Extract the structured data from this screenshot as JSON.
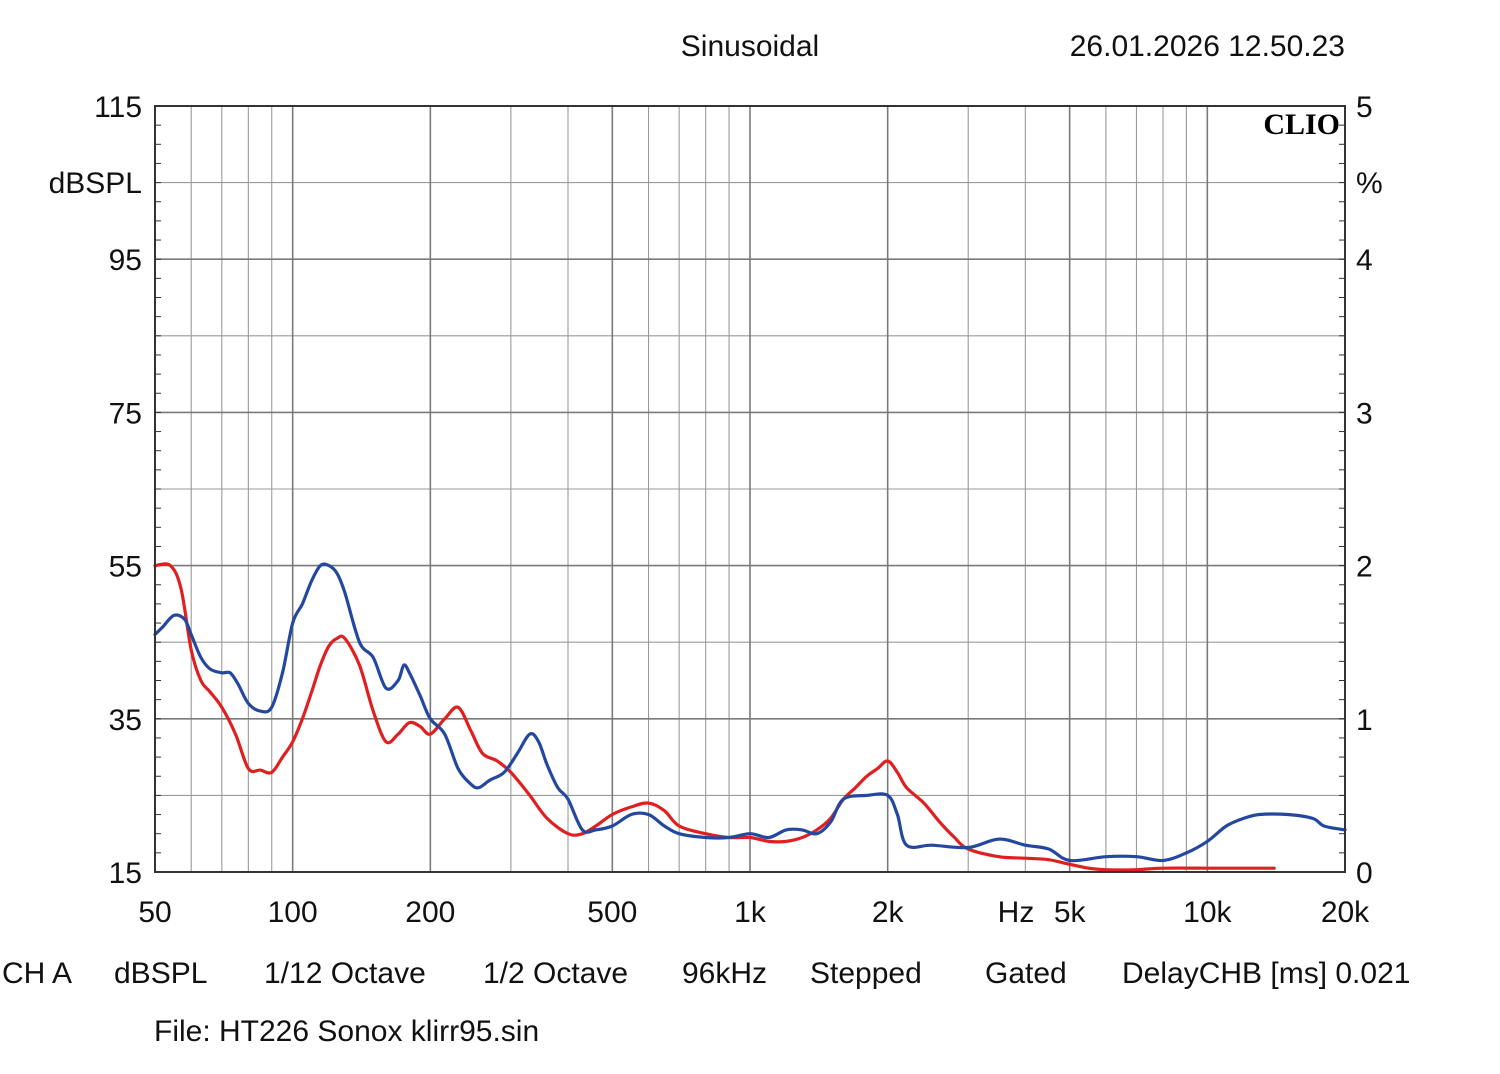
{
  "header": {
    "mode": "Sinusoidal",
    "timestamp": "26.01.2026 12.50.23",
    "brand": "CLIO"
  },
  "chart_data": {
    "type": "line",
    "x_scale": "log",
    "xlim": [
      50,
      20000
    ],
    "ylim_left": [
      15,
      115
    ],
    "ylim_right": [
      0,
      5
    ],
    "ylabel_left": "dBSPL",
    "ylabel_right": "%",
    "xlabel": "Hz",
    "grid": true,
    "x_ticks": [
      {
        "value": 50,
        "label": "50"
      },
      {
        "value": 100,
        "label": "100"
      },
      {
        "value": 200,
        "label": "200"
      },
      {
        "value": 500,
        "label": "500"
      },
      {
        "value": 1000,
        "label": "1k"
      },
      {
        "value": 2000,
        "label": "2k"
      },
      {
        "value": 5000,
        "label": "5k"
      },
      {
        "value": 10000,
        "label": "10k"
      },
      {
        "value": 20000,
        "label": "20k"
      }
    ],
    "y_ticks_left": [
      {
        "value": 115,
        "label": "115"
      },
      {
        "value": 95,
        "label": "95"
      },
      {
        "value": 75,
        "label": "75"
      },
      {
        "value": 55,
        "label": "55"
      },
      {
        "value": 35,
        "label": "35"
      },
      {
        "value": 15,
        "label": "15"
      }
    ],
    "y_ticks_right": [
      {
        "value": 5,
        "label": "5"
      },
      {
        "value": 4,
        "label": "4"
      },
      {
        "value": 3,
        "label": "3"
      },
      {
        "value": 2,
        "label": "2"
      },
      {
        "value": 1,
        "label": "1"
      },
      {
        "value": 0,
        "label": "0"
      }
    ],
    "series": [
      {
        "name": "red",
        "color": "#e02020",
        "points": [
          [
            50,
            55
          ],
          [
            54,
            55
          ],
          [
            57,
            52
          ],
          [
            60,
            44
          ],
          [
            63,
            40
          ],
          [
            66,
            38.5
          ],
          [
            70,
            36.5
          ],
          [
            75,
            33
          ],
          [
            80,
            28.5
          ],
          [
            85,
            28.3
          ],
          [
            90,
            28
          ],
          [
            95,
            30
          ],
          [
            100,
            32
          ],
          [
            105,
            35
          ],
          [
            110,
            38.5
          ],
          [
            115,
            42
          ],
          [
            120,
            44.5
          ],
          [
            125,
            45.5
          ],
          [
            130,
            45.5
          ],
          [
            140,
            42
          ],
          [
            150,
            36
          ],
          [
            160,
            32
          ],
          [
            170,
            33
          ],
          [
            180,
            34.5
          ],
          [
            190,
            34
          ],
          [
            200,
            33
          ],
          [
            215,
            35
          ],
          [
            230,
            36.5
          ],
          [
            245,
            33.5
          ],
          [
            260,
            30.5
          ],
          [
            280,
            29.5
          ],
          [
            300,
            28
          ],
          [
            330,
            25
          ],
          [
            360,
            22
          ],
          [
            400,
            20
          ],
          [
            430,
            20
          ],
          [
            460,
            21
          ],
          [
            500,
            22.5
          ],
          [
            550,
            23.5
          ],
          [
            600,
            24
          ],
          [
            650,
            23
          ],
          [
            700,
            21
          ],
          [
            800,
            20
          ],
          [
            900,
            19.5
          ],
          [
            1000,
            19.5
          ],
          [
            1100,
            19
          ],
          [
            1200,
            19
          ],
          [
            1300,
            19.5
          ],
          [
            1400,
            20.5
          ],
          [
            1500,
            22
          ],
          [
            1600,
            24.5
          ],
          [
            1700,
            26
          ],
          [
            1800,
            27.5
          ],
          [
            1900,
            28.5
          ],
          [
            2000,
            29.5
          ],
          [
            2100,
            28
          ],
          [
            2200,
            26
          ],
          [
            2400,
            24
          ],
          [
            2600,
            21.5
          ],
          [
            2800,
            19.5
          ],
          [
            3000,
            18
          ],
          [
            3500,
            17
          ],
          [
            4000,
            16.8
          ],
          [
            4500,
            16.6
          ],
          [
            5000,
            16
          ],
          [
            5500,
            15.5
          ],
          [
            6000,
            15.3
          ],
          [
            7000,
            15.3
          ],
          [
            8000,
            15.5
          ],
          [
            10000,
            15.5
          ],
          [
            12000,
            15.5
          ],
          [
            14000,
            15.5
          ]
        ]
      },
      {
        "name": "blue",
        "color": "#2448a0",
        "points": [
          [
            50,
            46
          ],
          [
            52,
            47
          ],
          [
            55,
            48.5
          ],
          [
            58,
            48
          ],
          [
            60,
            46
          ],
          [
            63,
            43
          ],
          [
            66,
            41.5
          ],
          [
            70,
            41
          ],
          [
            73,
            41
          ],
          [
            76,
            39.5
          ],
          [
            80,
            37
          ],
          [
            85,
            36
          ],
          [
            90,
            36.5
          ],
          [
            95,
            41
          ],
          [
            100,
            47.5
          ],
          [
            105,
            50
          ],
          [
            110,
            53
          ],
          [
            115,
            55
          ],
          [
            120,
            55
          ],
          [
            125,
            54
          ],
          [
            130,
            51.5
          ],
          [
            140,
            45
          ],
          [
            150,
            43
          ],
          [
            160,
            39
          ],
          [
            170,
            40
          ],
          [
            175,
            42
          ],
          [
            180,
            41
          ],
          [
            190,
            38
          ],
          [
            200,
            35
          ],
          [
            215,
            33
          ],
          [
            230,
            28.5
          ],
          [
            245,
            26.5
          ],
          [
            255,
            26
          ],
          [
            270,
            27
          ],
          [
            290,
            28
          ],
          [
            310,
            30.5
          ],
          [
            330,
            33
          ],
          [
            345,
            32
          ],
          [
            360,
            29
          ],
          [
            380,
            26
          ],
          [
            400,
            24.5
          ],
          [
            430,
            20.5
          ],
          [
            460,
            20.5
          ],
          [
            500,
            21
          ],
          [
            550,
            22.5
          ],
          [
            600,
            22.5
          ],
          [
            650,
            21
          ],
          [
            700,
            20
          ],
          [
            800,
            19.5
          ],
          [
            900,
            19.5
          ],
          [
            1000,
            20
          ],
          [
            1100,
            19.5
          ],
          [
            1200,
            20.5
          ],
          [
            1300,
            20.5
          ],
          [
            1400,
            20
          ],
          [
            1500,
            21.5
          ],
          [
            1600,
            24.5
          ],
          [
            1800,
            25
          ],
          [
            2000,
            25
          ],
          [
            2100,
            22.5
          ],
          [
            2200,
            18.5
          ],
          [
            2500,
            18.5
          ],
          [
            3000,
            18.2
          ],
          [
            3500,
            19.3
          ],
          [
            4000,
            18.5
          ],
          [
            4500,
            18
          ],
          [
            5000,
            16.5
          ],
          [
            6000,
            17
          ],
          [
            7000,
            17
          ],
          [
            8000,
            16.5
          ],
          [
            9000,
            17.5
          ],
          [
            10000,
            19
          ],
          [
            11000,
            21
          ],
          [
            12000,
            22
          ],
          [
            13000,
            22.5
          ],
          [
            15000,
            22.5
          ],
          [
            17000,
            22
          ],
          [
            18000,
            21
          ],
          [
            20000,
            20.5
          ]
        ]
      }
    ]
  },
  "footer": {
    "line1": [
      "CH A",
      "dBSPL",
      "1/12 Octave",
      "1/2 Octave",
      "96kHz",
      "Stepped",
      "Gated",
      "DelayCHB [ms] 0.021"
    ],
    "file": "File: HT226 Sonox klirr95.sin"
  }
}
